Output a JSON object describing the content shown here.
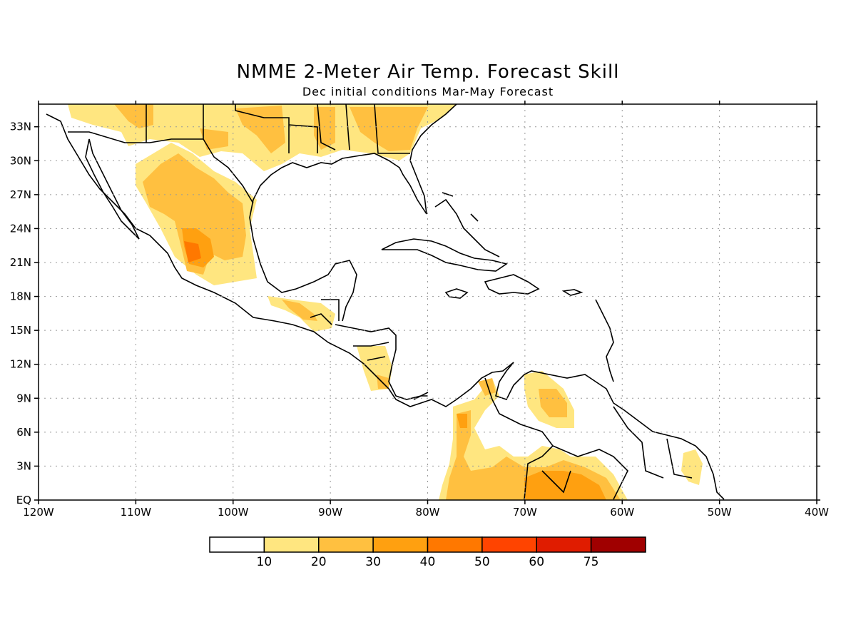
{
  "title": "NMME 2-Meter Air Temp. Forecast Skill",
  "subtitle": "Dec initial conditions  Mar-May Forecast",
  "chart_data": {
    "type": "heatmap",
    "projection": "lat-lon",
    "lon_range": [
      -120,
      -40
    ],
    "lat_range": [
      0,
      35
    ],
    "x_ticks": [
      "120W",
      "110W",
      "100W",
      "90W",
      "80W",
      "70W",
      "60W",
      "50W",
      "40W"
    ],
    "y_ticks": [
      "EQ",
      "3N",
      "6N",
      "9N",
      "12N",
      "15N",
      "18N",
      "21N",
      "24N",
      "27N",
      "30N",
      "33N"
    ],
    "grid": true,
    "colorbar": {
      "labels": [
        "10",
        "20",
        "30",
        "40",
        "50",
        "60",
        "75"
      ],
      "colors": [
        "#ffffff",
        "#ffe680",
        "#ffc040",
        "#ffa010",
        "#ff7800",
        "#ff4400",
        "#e01c00",
        "#a00000"
      ]
    }
  },
  "colors": {
    "land_outline": "#000000",
    "grid": "#999999"
  }
}
